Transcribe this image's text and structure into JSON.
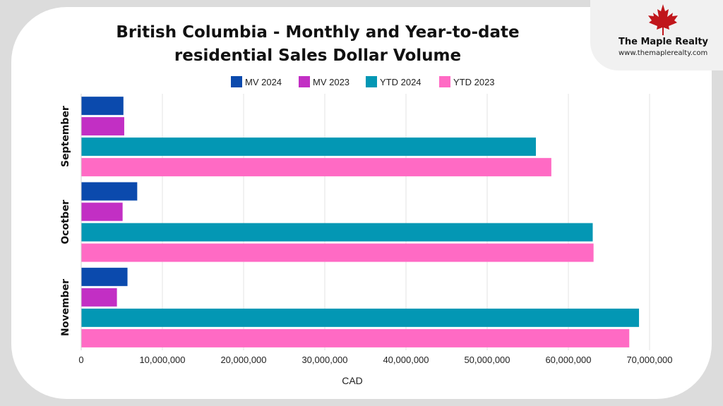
{
  "brand": {
    "name": "The Maple Realty",
    "url": "www.themaplerealty.com"
  },
  "colors": {
    "background": "#dcdcdc",
    "card": "#ffffff",
    "maple_leaf": "#c0161b"
  },
  "chart_data": {
    "type": "bar",
    "orientation": "horizontal",
    "title": "British Columbia - Monthly and Year-to-date residential Sales Dollar Volume",
    "title_lines": [
      "British Columbia - Monthly and Year-to-date",
      "residential Sales Dollar Volume"
    ],
    "xlabel": "CAD",
    "ylabel": "",
    "categories": [
      "September",
      "Ocotber",
      "November"
    ],
    "series": [
      {
        "name": "MV 2024",
        "color": "#0b4aad",
        "values": [
          5200000,
          6900000,
          5700000
        ]
      },
      {
        "name": "MV 2023",
        "color": "#c22fc4",
        "values": [
          5300000,
          5100000,
          4400000
        ]
      },
      {
        "name": "YTD 2024",
        "color": "#0397b4",
        "values": [
          56000000,
          63000000,
          68700000
        ]
      },
      {
        "name": "YTD 2023",
        "color": "#ff6ac4",
        "values": [
          57900000,
          63100000,
          67500000
        ]
      }
    ],
    "xlim": [
      0,
      70000000
    ],
    "xticks": [
      0,
      10000000,
      20000000,
      30000000,
      40000000,
      50000000,
      60000000,
      70000000
    ],
    "xtick_labels": [
      "0",
      "10,000,000",
      "20,000,000",
      "30,000,000",
      "40,000,000",
      "50,000,000",
      "60,000,000",
      "70,000,000"
    ],
    "grid": true,
    "legend_position": "top"
  }
}
